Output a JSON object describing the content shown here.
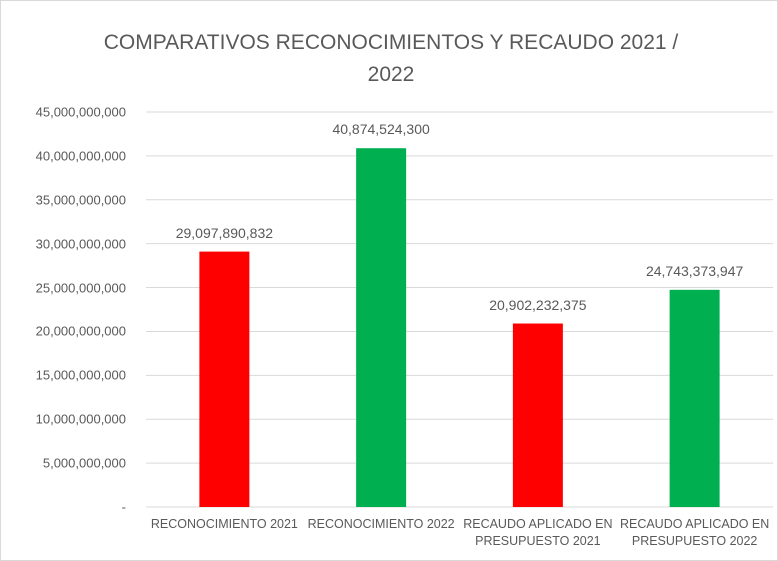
{
  "chart_data": {
    "type": "bar",
    "title": "COMPARATIVOS RECONOCIMIENTOS Y RECAUDO 2021 / 2022",
    "categories": [
      "RECONOCIMIENTO 2021",
      "RECONOCIMIENTO 2022",
      "RECAUDO APLICADO EN PRESUPUESTO 2021",
      "RECAUDO APLICADO EN PRESUPUESTO 2022"
    ],
    "values": [
      29097890832,
      40874524300,
      20902232375,
      24743373947
    ],
    "value_labels": [
      "29,097,890,832",
      "40,874,524,300",
      "20,902,232,375",
      "24,743,373,947"
    ],
    "colors": [
      "#ff0000",
      "#00b050",
      "#ff0000",
      "#00b050"
    ],
    "ylim": [
      0,
      45000000000
    ],
    "yticks": [
      {
        "value": 0,
        "label": "-"
      },
      {
        "value": 5000000000,
        "label": "5,000,000,000"
      },
      {
        "value": 10000000000,
        "label": "10,000,000,000"
      },
      {
        "value": 15000000000,
        "label": "15,000,000,000"
      },
      {
        "value": 20000000000,
        "label": "20,000,000,000"
      },
      {
        "value": 25000000000,
        "label": "25,000,000,000"
      },
      {
        "value": 30000000000,
        "label": "30,000,000,000"
      },
      {
        "value": 35000000000,
        "label": "35,000,000,000"
      },
      {
        "value": 40000000000,
        "label": "40,000,000,000"
      },
      {
        "value": 45000000000,
        "label": "45,000,000,000"
      }
    ],
    "grid": true
  }
}
